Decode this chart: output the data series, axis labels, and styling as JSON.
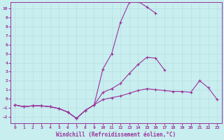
{
  "xlabel": "Windchill (Refroidissement éolien,°C)",
  "bg_color": "#c8eef0",
  "line_color": "#993399",
  "grid_color": "#b8dde0",
  "xlim": [
    -0.5,
    23.5
  ],
  "ylim": [
    -2.7,
    10.7
  ],
  "yticks": [
    -2,
    -1,
    0,
    1,
    2,
    3,
    4,
    5,
    6,
    7,
    8,
    9,
    10
  ],
  "xticks": [
    0,
    1,
    2,
    3,
    4,
    5,
    6,
    7,
    8,
    9,
    10,
    11,
    12,
    13,
    14,
    15,
    16,
    17,
    18,
    19,
    20,
    21,
    22,
    23
  ],
  "line1_y": [
    -0.7,
    -0.9,
    -0.8,
    -0.8,
    -0.9,
    -1.1,
    -1.5,
    -2.2,
    -1.3,
    -0.7,
    3.3,
    5.0,
    8.5,
    10.7,
    10.8,
    10.2,
    9.5,
    null,
    null,
    null,
    null,
    null,
    null,
    null
  ],
  "line2_y": [
    -0.7,
    -0.9,
    -0.8,
    -0.8,
    -0.9,
    -1.1,
    -1.5,
    -2.2,
    -1.3,
    -0.7,
    0.7,
    1.1,
    1.7,
    2.8,
    3.8,
    4.6,
    4.5,
    3.2,
    null,
    null,
    null,
    null,
    null,
    null
  ],
  "line3_y": [
    -0.7,
    -0.9,
    -0.8,
    -0.8,
    -0.9,
    -1.1,
    -1.5,
    -2.2,
    -1.3,
    -0.7,
    -0.1,
    0.1,
    0.3,
    0.6,
    0.9,
    1.1,
    1.0,
    0.9,
    0.8,
    0.8,
    0.7,
    2.0,
    1.2,
    -0.1
  ]
}
